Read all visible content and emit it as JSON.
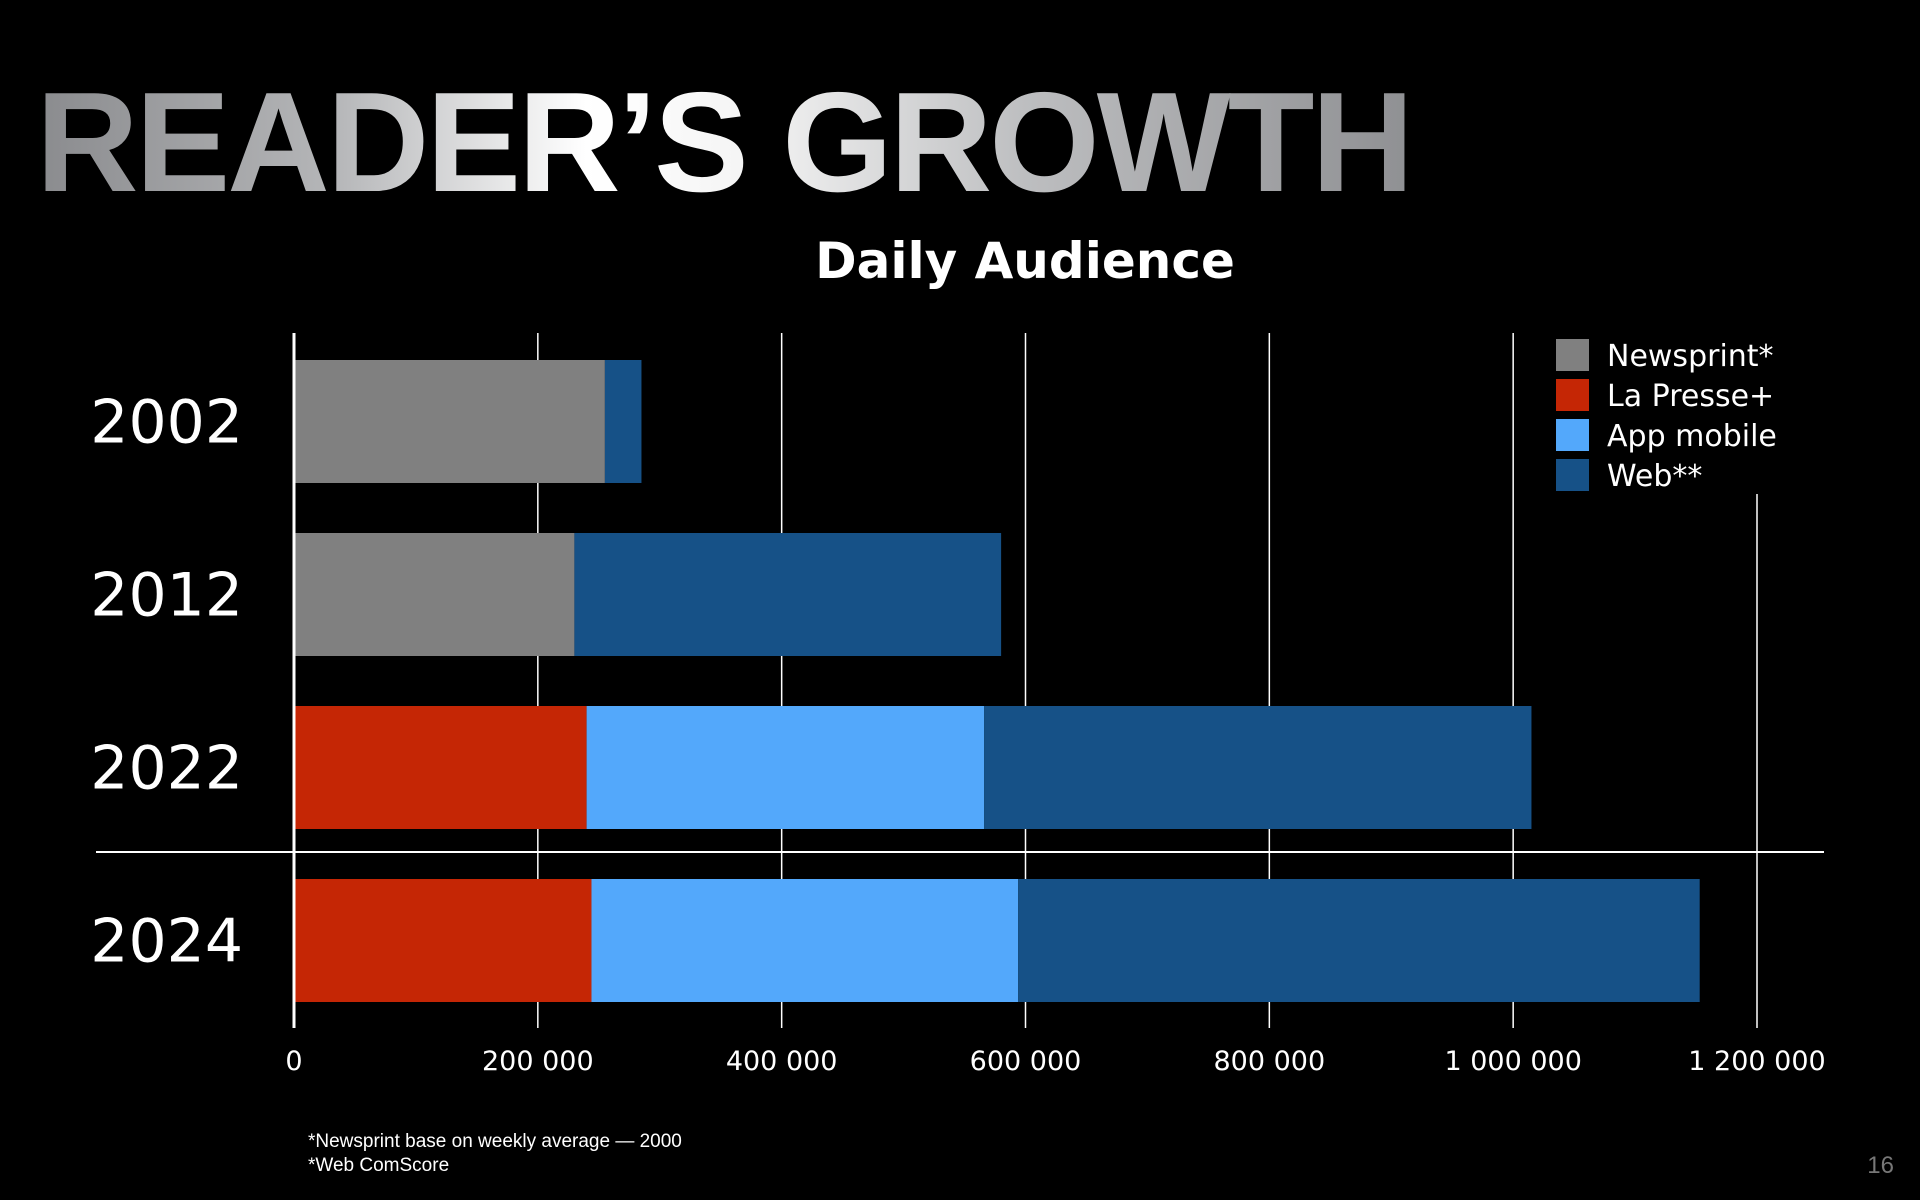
{
  "slide": {
    "title": "READER’S GROWTH",
    "footnotes": [
      "*Newsprint base on weekly average — 2000",
      "*Web ComScore"
    ],
    "page_number": "16"
  },
  "chart_data": {
    "type": "bar",
    "orientation": "horizontal",
    "stacked": true,
    "title": "Daily Audience",
    "xlabel": "",
    "ylabel": "",
    "categories": [
      "2002",
      "2012",
      "2022",
      "2024"
    ],
    "series": [
      {
        "name": "Newsprint*",
        "color": "#808080",
        "values": [
          255000,
          230000,
          0,
          0
        ]
      },
      {
        "name": "La Presse+",
        "color": "#c52605",
        "values": [
          0,
          0,
          240000,
          244000
        ]
      },
      {
        "name": "App mobile",
        "color": "#53a8fb",
        "values": [
          0,
          0,
          326000,
          350000
        ]
      },
      {
        "name": "Web**",
        "color": "#165187",
        "values": [
          30000,
          350000,
          449000,
          559000
        ]
      }
    ],
    "xlim": [
      0,
      1200000
    ],
    "xticks": [
      0,
      200000,
      400000,
      600000,
      800000,
      1000000,
      1200000
    ],
    "xtick_labels": [
      "0",
      "200 000",
      "400 000",
      "600 000",
      "800 000",
      "1 000 000",
      "1 200 000"
    ],
    "grid": "vertical",
    "legend_position": "top-right"
  }
}
